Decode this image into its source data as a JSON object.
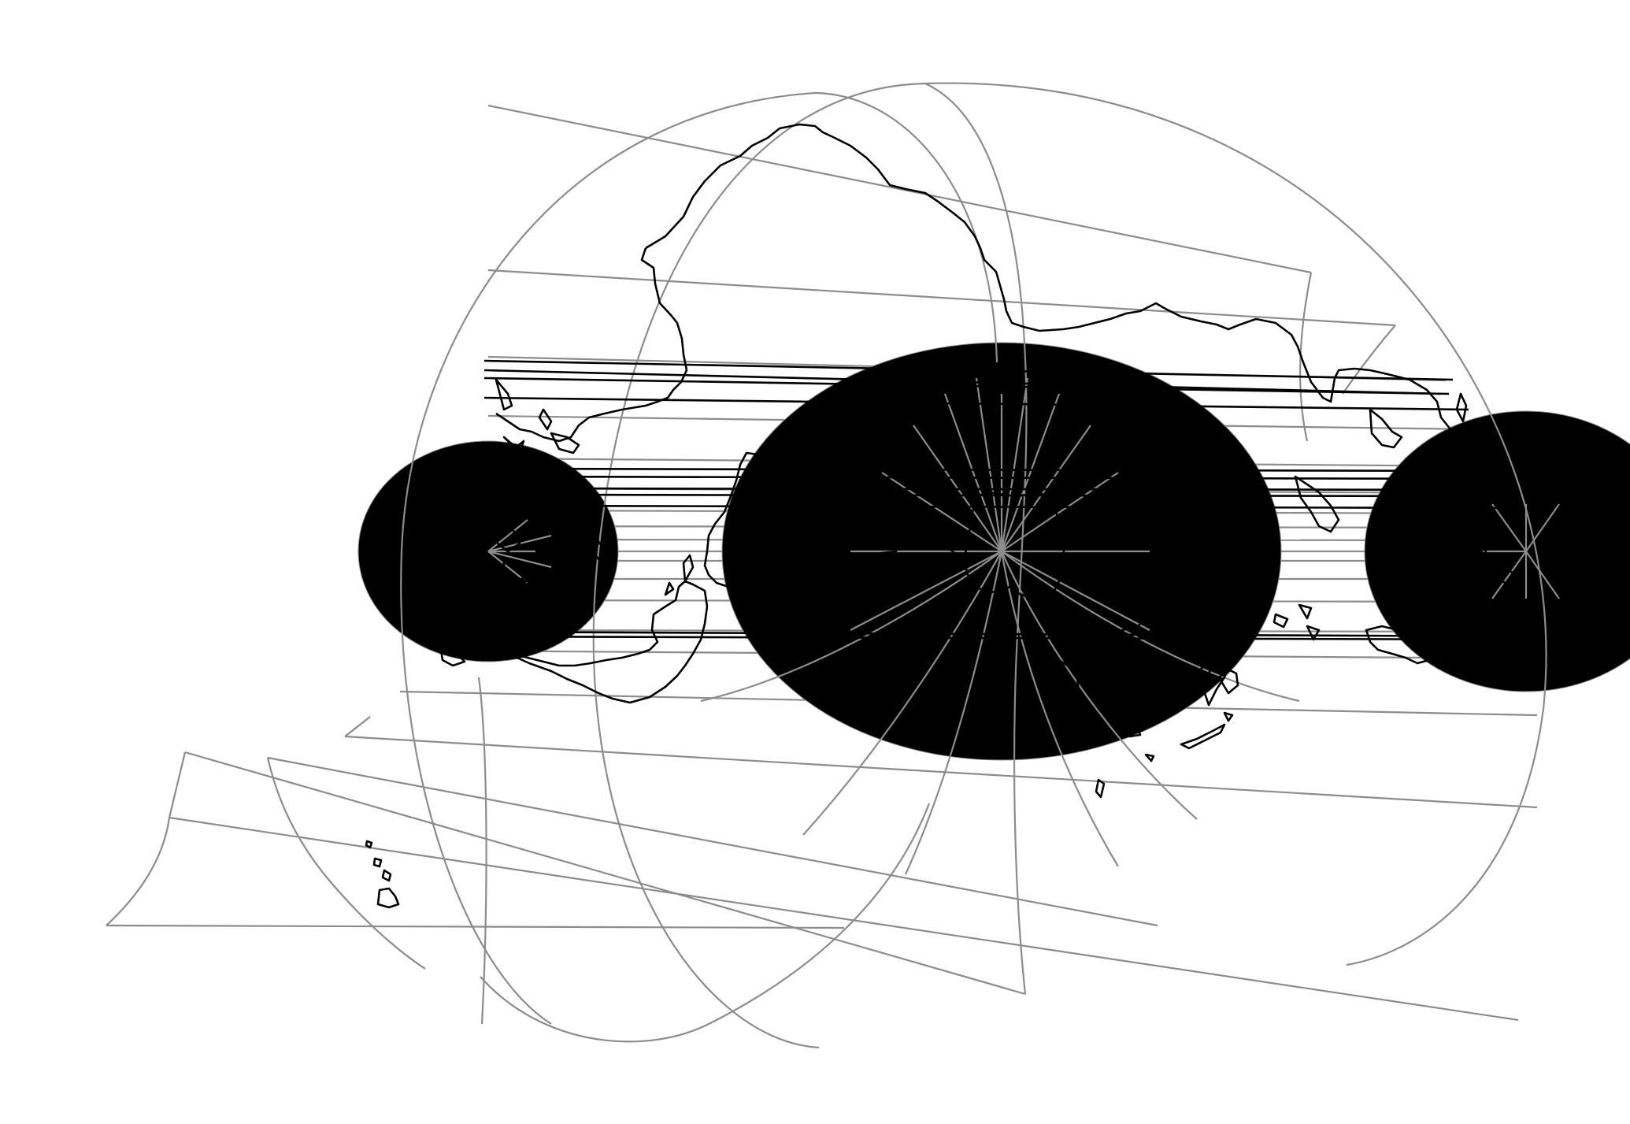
{
  "map": {
    "colors": {
      "background": "#ffffff",
      "graticule": "#8c8c8c",
      "coastline": "#000000"
    },
    "layers": [
      "graticule",
      "coastline"
    ]
  }
}
